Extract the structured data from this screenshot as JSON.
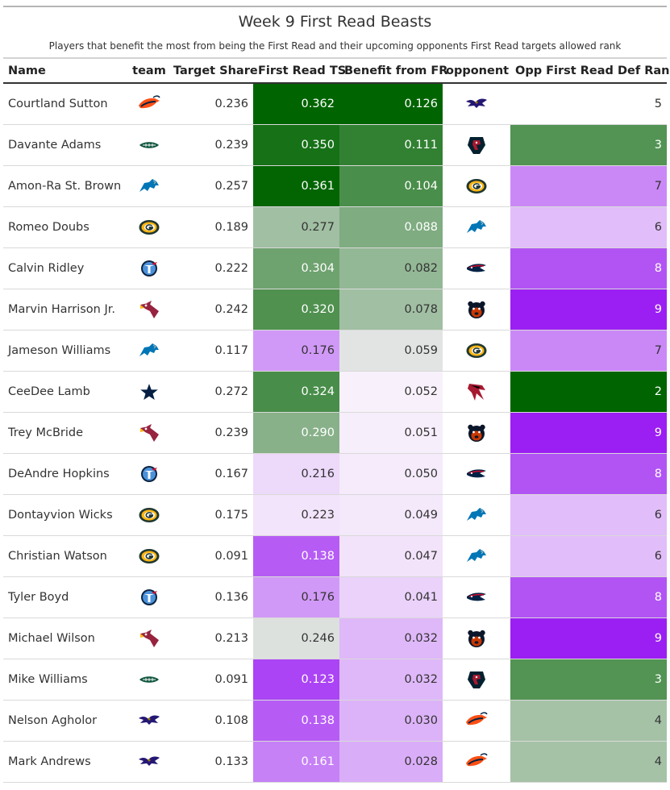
{
  "chart_data": {
    "type": "table",
    "title": "Week 9 First Read Beasts",
    "subtitle": "Players that benefit the most from being the First Read and their upcoming opponents First Read targets allowed rank",
    "columns": [
      "Name",
      "team",
      "Target Share",
      "First Read TS",
      "Benefit from FR",
      "opponent",
      "Opp First Read Def Rank"
    ],
    "rows": [
      {
        "name": "Courtland Sutton",
        "team": "DEN",
        "target_share": "0.236",
        "first_read_ts": "0.362",
        "benefit": "0.126",
        "opponent": "BAL",
        "rank": "5"
      },
      {
        "name": "Davante Adams",
        "team": "NYJ",
        "target_share": "0.239",
        "first_read_ts": "0.350",
        "benefit": "0.111",
        "opponent": "HOU",
        "rank": "3"
      },
      {
        "name": "Amon-Ra St. Brown",
        "team": "DET",
        "target_share": "0.257",
        "first_read_ts": "0.361",
        "benefit": "0.104",
        "opponent": "GB",
        "rank": "7"
      },
      {
        "name": "Romeo Doubs",
        "team": "GB",
        "target_share": "0.189",
        "first_read_ts": "0.277",
        "benefit": "0.088",
        "opponent": "DET",
        "rank": "6"
      },
      {
        "name": "Calvin Ridley",
        "team": "TEN",
        "target_share": "0.222",
        "first_read_ts": "0.304",
        "benefit": "0.082",
        "opponent": "NE",
        "rank": "8"
      },
      {
        "name": "Marvin Harrison Jr.",
        "team": "ARI",
        "target_share": "0.242",
        "first_read_ts": "0.320",
        "benefit": "0.078",
        "opponent": "CHI",
        "rank": "9"
      },
      {
        "name": "Jameson Williams",
        "team": "DET",
        "target_share": "0.117",
        "first_read_ts": "0.176",
        "benefit": "0.059",
        "opponent": "GB",
        "rank": "7"
      },
      {
        "name": "CeeDee Lamb",
        "team": "DAL",
        "target_share": "0.272",
        "first_read_ts": "0.324",
        "benefit": "0.052",
        "opponent": "ATL",
        "rank": "2"
      },
      {
        "name": "Trey McBride",
        "team": "ARI",
        "target_share": "0.239",
        "first_read_ts": "0.290",
        "benefit": "0.051",
        "opponent": "CHI",
        "rank": "9"
      },
      {
        "name": "DeAndre Hopkins",
        "team": "TEN",
        "target_share": "0.167",
        "first_read_ts": "0.216",
        "benefit": "0.050",
        "opponent": "NE",
        "rank": "8"
      },
      {
        "name": "Dontayvion Wicks",
        "team": "GB",
        "target_share": "0.175",
        "first_read_ts": "0.223",
        "benefit": "0.049",
        "opponent": "DET",
        "rank": "6"
      },
      {
        "name": "Christian Watson",
        "team": "GB",
        "target_share": "0.091",
        "first_read_ts": "0.138",
        "benefit": "0.047",
        "opponent": "DET",
        "rank": "6"
      },
      {
        "name": "Tyler Boyd",
        "team": "TEN",
        "target_share": "0.136",
        "first_read_ts": "0.176",
        "benefit": "0.041",
        "opponent": "NE",
        "rank": "8"
      },
      {
        "name": "Michael Wilson",
        "team": "ARI",
        "target_share": "0.213",
        "first_read_ts": "0.246",
        "benefit": "0.032",
        "opponent": "CHI",
        "rank": "9"
      },
      {
        "name": "Mike Williams",
        "team": "NYJ",
        "target_share": "0.091",
        "first_read_ts": "0.123",
        "benefit": "0.032",
        "opponent": "HOU",
        "rank": "3"
      },
      {
        "name": "Nelson Agholor",
        "team": "BAL",
        "target_share": "0.108",
        "first_read_ts": "0.138",
        "benefit": "0.030",
        "opponent": "DEN",
        "rank": "4"
      },
      {
        "name": "Mark Andrews",
        "team": "BAL",
        "target_share": "0.133",
        "first_read_ts": "0.161",
        "benefit": "0.028",
        "opponent": "DEN",
        "rank": "4"
      }
    ],
    "color_scale": {
      "low": "#9b1ff2",
      "mid": "#f8f1fb",
      "high": "#006400"
    }
  },
  "team_colors": {
    "DEN": "#fb4f14",
    "NYJ": "#125740",
    "DET": "#0076b6",
    "GB": "#203731",
    "TEN": "#0c2340",
    "ARI": "#97233f",
    "DAL": "#041e42",
    "BAL": "#241773",
    "HOU": "#03202f",
    "NE": "#002244",
    "CHI": "#0b162a",
    "ATL": "#a71930"
  }
}
